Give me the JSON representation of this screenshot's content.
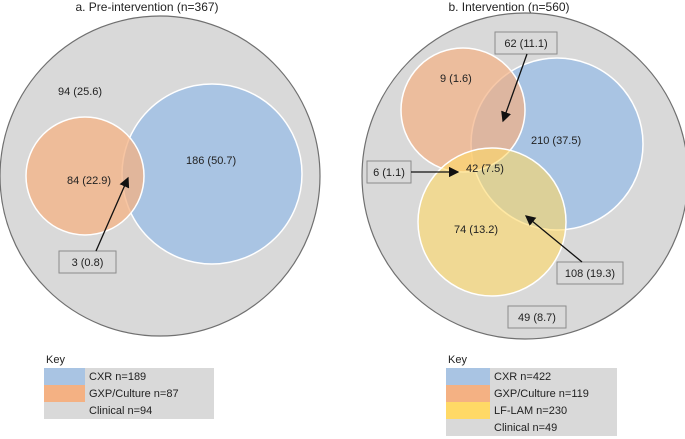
{
  "panels": {
    "pre": {
      "title": "a. Pre-intervention (n=367)",
      "labels": {
        "clinical_only": "94 (25.6)",
        "gxp_only": "84 (22.9)",
        "cxr_only": "186 (50.7)",
        "overlap": "3 (0.8)"
      },
      "key": {
        "heading": "Key",
        "items": [
          {
            "label": "CXR n=189",
            "color": "#a9c4e3"
          },
          {
            "label": "GXP/Culture n=87",
            "color": "#f4b183"
          },
          {
            "label": "Clinical n=94",
            "color": "#d9d9d9"
          }
        ]
      }
    },
    "int": {
      "title": "b. Intervention (n=560)",
      "labels": {
        "gxp_cxr": "62 (11.1)",
        "gxp_only": "9 (1.6)",
        "cxr_only": "210 (37.5)",
        "gxp_lam": "6 (1.1)",
        "all_three": "42 (7.5)",
        "lam_only": "74 (13.2)",
        "cxr_lam": "108 (19.3)",
        "clinical_only": "49 (8.7)"
      },
      "key": {
        "heading": "Key",
        "items": [
          {
            "label": "CXR n=422",
            "color": "#a9c4e3"
          },
          {
            "label": "GXP/Culture n=119",
            "color": "#f4b183"
          },
          {
            "label": "LF-LAM n=230",
            "color": "#ffd966"
          },
          {
            "label": "Clinical n=49",
            "color": "#d9d9d9"
          }
        ]
      }
    }
  }
}
